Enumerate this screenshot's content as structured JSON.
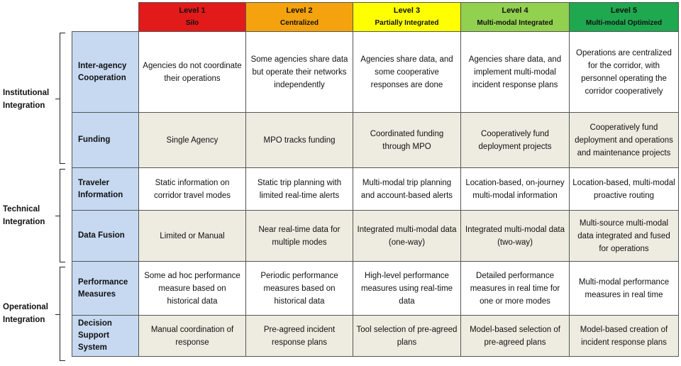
{
  "colors": {
    "level1": "#e21a1a",
    "level2": "#f4a20d",
    "level3": "#ffff00",
    "level4": "#92d050",
    "level5": "#1fa84f",
    "row_label_bg": "#c6d9f1",
    "alt_row_bg": "#eeece1"
  },
  "levels": [
    {
      "title": "Level 1",
      "subtitle": "Silo"
    },
    {
      "title": "Level 2",
      "subtitle": "Centralized"
    },
    {
      "title": "Level 3",
      "subtitle": "Partially Integrated"
    },
    {
      "title": "Level 4",
      "subtitle": "Multi-modal Integrated"
    },
    {
      "title": "Level 5",
      "subtitle": "Multi-modal Optimized"
    }
  ],
  "groups": [
    {
      "label": "Institutional Integration"
    },
    {
      "label": "Technical Integration"
    },
    {
      "label": "Operational Integration"
    }
  ],
  "rows": [
    {
      "label": "Inter-agency Cooperation",
      "cells": [
        "Agencies do not coordinate their operations",
        "Some agencies share data but operate their networks independently",
        "Agencies share data, and some cooperative responses are done",
        "Agencies share data, and implement multi-modal incident response plans",
        "Operations are centralized for the corridor, with personnel operating the corridor cooperatively"
      ]
    },
    {
      "label": "Funding",
      "cells": [
        "Single Agency",
        "MPO tracks funding",
        "Coordinated funding through MPO",
        "Cooperatively fund deployment projects",
        "Cooperatively fund deployment and operations and maintenance projects"
      ]
    },
    {
      "label": "Traveler Information",
      "cells": [
        "Static information on corridor travel modes",
        "Static trip planning with limited real-time alerts",
        "Multi-modal trip planning and account-based alerts",
        "Location-based, on-journey multi-modal information",
        "Location-based, multi-modal proactive routing"
      ]
    },
    {
      "label": "Data Fusion",
      "cells": [
        "Limited or Manual",
        "Near real-time data for multiple modes",
        "Integrated multi-modal data (one-way)",
        "Integrated multi-modal data (two-way)",
        "Multi-source multi-modal data integrated and fused for operations"
      ]
    },
    {
      "label": "Performance Measures",
      "cells": [
        "Some ad hoc performance measure based on historical data",
        "Periodic performance measures based on historical data",
        "High-level performance measures using real-time data",
        "Detailed performance measures in real time for one or more modes",
        "Multi-modal performance measures in real time"
      ]
    },
    {
      "label": "Decision Support System",
      "cells": [
        "Manual coordination of response",
        "Pre-agreed incident response plans",
        "Tool selection of pre-agreed plans",
        "Model-based selection of pre-agreed plans",
        "Model-based creation of incident response plans"
      ]
    }
  ]
}
